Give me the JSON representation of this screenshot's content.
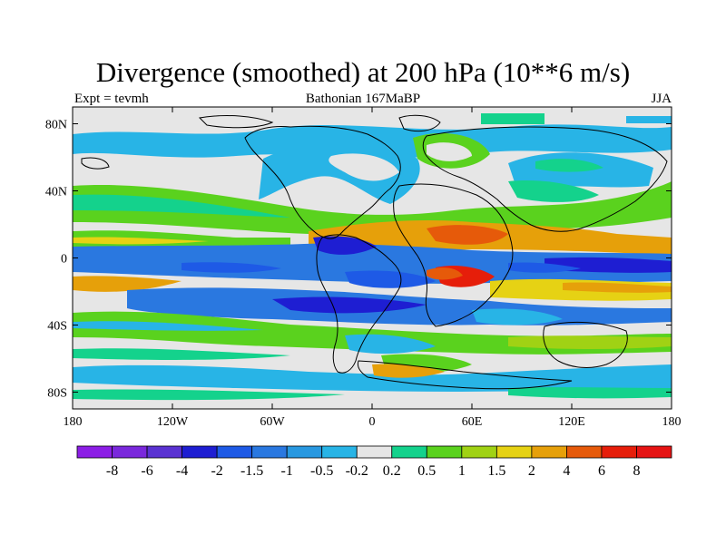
{
  "title": "Divergence (smoothed) at 200 hPa (10**6 m/s)",
  "subtitle_left": "Expt = tevmh",
  "subtitle_center": "Bathonian 167MaBP",
  "subtitle_right": "JJA",
  "map": {
    "lon_range": [
      -180,
      180
    ],
    "lat_range": [
      -90,
      90
    ],
    "lon_ticks": [
      {
        "value": -180,
        "label": "180"
      },
      {
        "value": -120,
        "label": "120W"
      },
      {
        "value": -60,
        "label": "60W"
      },
      {
        "value": 0,
        "label": "0"
      },
      {
        "value": 60,
        "label": "60E"
      },
      {
        "value": 120,
        "label": "120E"
      },
      {
        "value": 180,
        "label": "180"
      }
    ],
    "lat_ticks": [
      {
        "value": 80,
        "label": "80N"
      },
      {
        "value": 40,
        "label": "40N"
      },
      {
        "value": 0,
        "label": "0"
      },
      {
        "value": -40,
        "label": "40S"
      },
      {
        "value": -80,
        "label": "80S"
      }
    ]
  },
  "colorbar": {
    "colors": [
      "#8c1ee6",
      "#7a28dc",
      "#5a32d2",
      "#1e1ed2",
      "#1e5ae6",
      "#2a78e0",
      "#2898e0",
      "#28b4e6",
      "#e6e6e6",
      "#14d28c",
      "#5ad21e",
      "#a0d214",
      "#e6d214",
      "#e6a00a",
      "#e65a0a",
      "#e61e0a",
      "#e61414"
    ],
    "labels": [
      "-8",
      "-6",
      "-4",
      "-2",
      "-1.5",
      "-1",
      "-0.5",
      "-0.2",
      "0.2",
      "0.5",
      "1",
      "1.5",
      "2",
      "4",
      "6",
      "8"
    ]
  }
}
